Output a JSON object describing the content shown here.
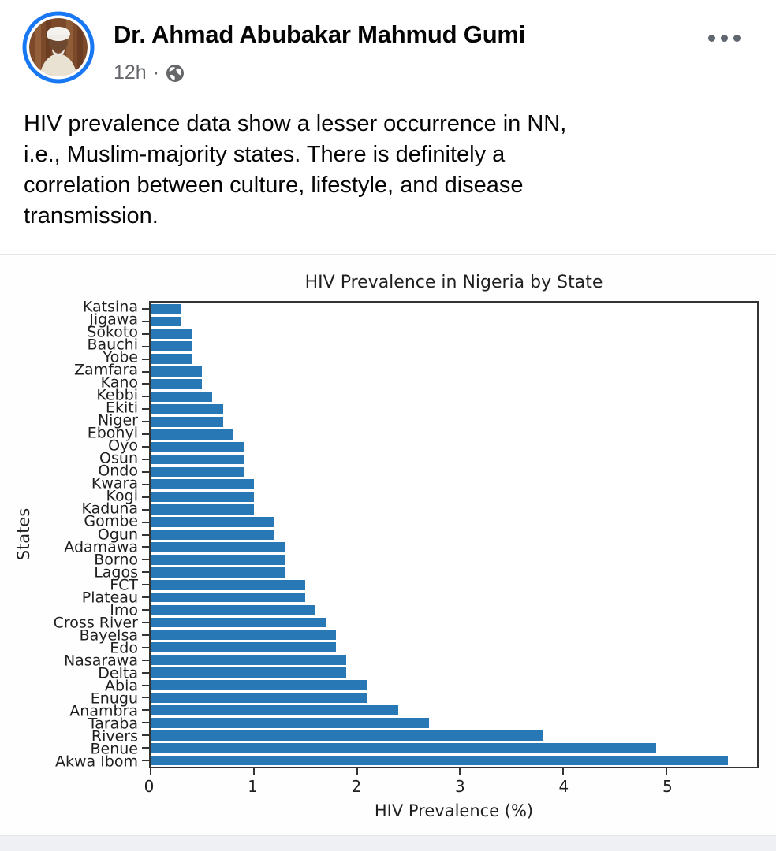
{
  "post": {
    "author": "Dr. Ahmad Abubakar Mahmud Gumi",
    "timestamp": "12h",
    "separator": "·",
    "audience": "public",
    "body_lines": [
      "HIV prevalence data show a lesser occurrence in NN,",
      "i.e., Muslim-majority states. There is definitely a",
      "correlation between culture, lifestyle, and disease",
      "transmission."
    ]
  },
  "chart_data": {
    "type": "bar",
    "orientation": "horizontal",
    "title": "HIV Prevalence in Nigeria by State",
    "xlabel": "HIV Prevalence (%)",
    "ylabel": "States",
    "categories": [
      "Katsina",
      "Jigawa",
      "Sokoto",
      "Bauchi",
      "Yobe",
      "Zamfara",
      "Kano",
      "Kebbi",
      "Ekiti",
      "Niger",
      "Ebonyi",
      "Oyo",
      "Osun",
      "Ondo",
      "Kwara",
      "Kogi",
      "Kaduna",
      "Gombe",
      "Ogun",
      "Adamawa",
      "Borno",
      "Lagos",
      "FCT",
      "Plateau",
      "Imo",
      "Cross River",
      "Bayelsa",
      "Edo",
      "Nasarawa",
      "Delta",
      "Abia",
      "Enugu",
      "Anambra",
      "Taraba",
      "Rivers",
      "Benue",
      "Akwa Ibom"
    ],
    "values": [
      0.3,
      0.3,
      0.4,
      0.4,
      0.4,
      0.5,
      0.5,
      0.6,
      0.7,
      0.7,
      0.8,
      0.9,
      0.9,
      0.9,
      1.0,
      1.0,
      1.0,
      1.2,
      1.2,
      1.3,
      1.3,
      1.3,
      1.5,
      1.5,
      1.6,
      1.7,
      1.8,
      1.8,
      1.9,
      1.9,
      2.1,
      2.1,
      2.4,
      2.7,
      3.8,
      4.9,
      5.6
    ],
    "xticks": [
      0,
      1,
      2,
      3,
      4,
      5
    ],
    "xlim": [
      0,
      5.88
    ],
    "grid": false,
    "legend": "none",
    "bar_color": "#2878b5"
  },
  "colors": {
    "accent_ring": "#1877f2",
    "bar": "#2878b5",
    "primary_text": "#050505",
    "secondary_text": "#65676b",
    "divider": "#e4e6e9"
  }
}
